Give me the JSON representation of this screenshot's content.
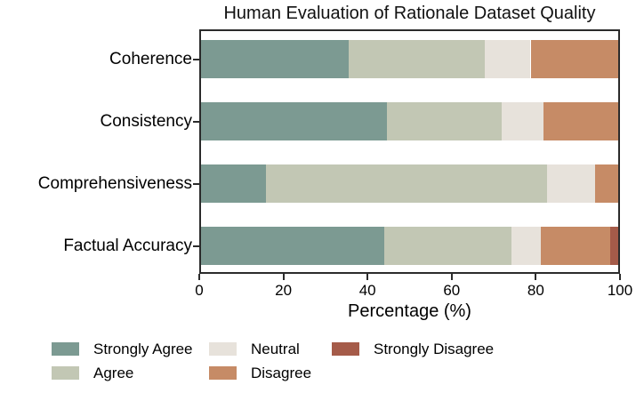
{
  "chart_data": {
    "type": "bar",
    "orientation": "horizontal",
    "stacked": true,
    "title": "Human Evaluation of Rationale Dataset Quality",
    "xlabel": "Percentage (%)",
    "ylabel": "",
    "xlim": [
      0,
      100
    ],
    "xticks": [
      0,
      20,
      40,
      60,
      80,
      100
    ],
    "grid": false,
    "categories": [
      "Coherence",
      "Consistency",
      "Comprehensiveness",
      "Factual Accuracy"
    ],
    "series": [
      {
        "name": "Strongly Agree",
        "color": "#7C9A92",
        "values": [
          35.5,
          44.5,
          15.5,
          44.0
        ]
      },
      {
        "name": "Agree",
        "color": "#C2C7B4",
        "values": [
          32.5,
          27.5,
          67.5,
          30.5
        ]
      },
      {
        "name": "Neutral",
        "color": "#E7E2DB",
        "values": [
          11.0,
          10.0,
          11.5,
          7.0
        ]
      },
      {
        "name": "Disagree",
        "color": "#C68B66",
        "values": [
          21.0,
          18.0,
          5.5,
          16.5
        ]
      },
      {
        "name": "Strongly Disagree",
        "color": "#A55B49",
        "values": [
          0.0,
          0.0,
          0.0,
          2.0
        ]
      }
    ],
    "legend": {
      "position": "bottom-left",
      "columns": [
        [
          "Strongly Agree",
          "Agree"
        ],
        [
          "Neutral",
          "Disagree"
        ],
        [
          "Strongly Disagree"
        ]
      ]
    },
    "colors": {
      "axis": "#2b2b2b",
      "background": "#ffffff",
      "text": "#000000"
    }
  }
}
